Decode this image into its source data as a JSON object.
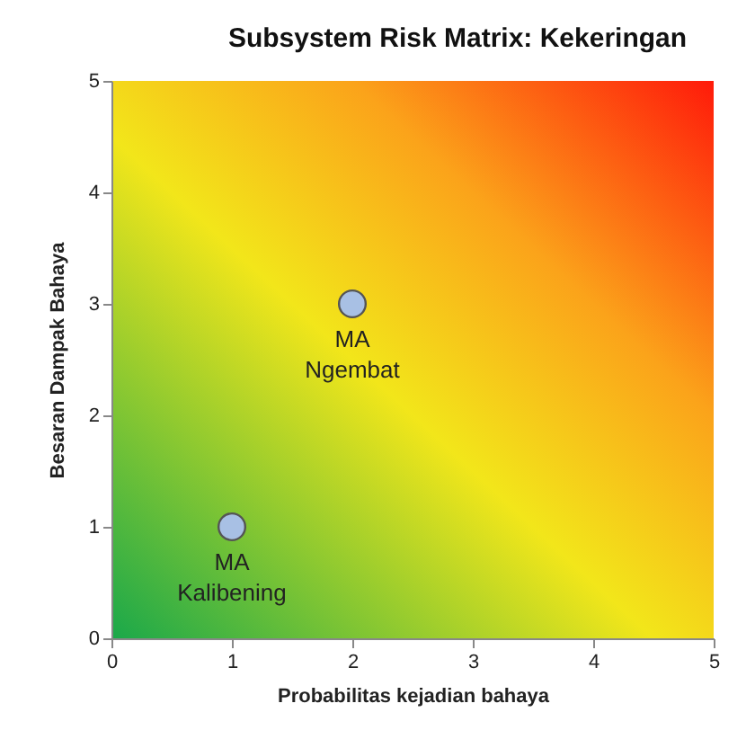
{
  "chart_data": {
    "type": "scatter",
    "title": "Subsystem Risk Matrix: Kekeringan",
    "xlabel": "Probabilitas kejadian  bahaya",
    "ylabel": "Besaran Dampak Bahaya",
    "x": [
      1,
      2
    ],
    "series": [
      {
        "color": "#a8c0e4",
        "values": [
          1,
          3
        ]
      }
    ],
    "xlim": [
      0,
      5
    ],
    "ylim": [
      0,
      5
    ],
    "xticks": [
      0,
      1,
      2,
      3,
      4,
      5
    ],
    "yticks": [
      0,
      1,
      2,
      3,
      4,
      5
    ],
    "marker": "circle",
    "grid": false,
    "annotations": [
      {
        "text": "MA\nKalibening",
        "x": 1,
        "y": 1
      },
      {
        "text": "MA\nNgembat",
        "x": 2,
        "y": 3
      }
    ]
  }
}
